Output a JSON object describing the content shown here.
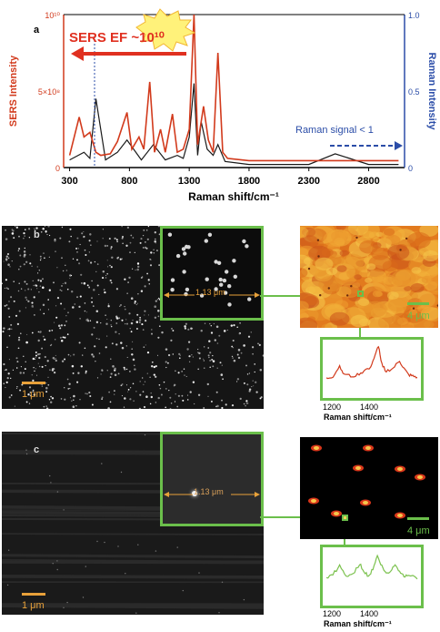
{
  "panel_a": {
    "label": "a",
    "y_left_label": "SERS Intensity",
    "y_right_label": "Raman Intensity",
    "x_label": "Raman shift/cm⁻¹",
    "x_ticks": [
      "300",
      "800",
      "1300",
      "1800",
      "2300",
      "2800"
    ],
    "y_left_ticks": [
      "0",
      "5×10⁸",
      "10¹⁰"
    ],
    "y_right_ticks": [
      "0",
      "0.5",
      "1.0"
    ],
    "annotation_ef": "SERS EF ~10¹⁰",
    "annotation_raman": "Raman signal < 1",
    "colors": {
      "sers": "#d23a1c",
      "raman": "#1a1a1a",
      "right_axis": "#2b4da8",
      "arrow": "#e03020"
    }
  },
  "panel_b": {
    "label": "b",
    "inset_dimension": "1.13 μm",
    "scale_sem": "1 μm",
    "scale_map": "4 μm",
    "spectrum_xlabel": "Raman shift/cm⁻¹",
    "spectrum_ticks": [
      "1200",
      "1400"
    ]
  },
  "panel_c": {
    "label": "c",
    "inset_dimension": "1.13 μm",
    "scale_sem": "1 μm",
    "scale_map": "4 μm",
    "spectrum_xlabel": "Raman shift/cm⁻¹",
    "spectrum_ticks": [
      "1200",
      "1400"
    ]
  },
  "chart_data": [
    {
      "type": "line",
      "panel": "a",
      "xlabel": "Raman shift/cm⁻¹",
      "ylabel": "SERS Intensity",
      "y2label": "Raman Intensity",
      "xlim": [
        250,
        3100
      ],
      "ylim": [
        0,
        10000000000.0
      ],
      "y2lim": [
        0,
        1.0
      ],
      "series": [
        {
          "axis": "left",
          "x": [
            300,
            380,
            420,
            470,
            520,
            560,
            640,
            700,
            780,
            820,
            880,
            920,
            970,
            1010,
            1060,
            1100,
            1160,
            1200,
            1250,
            1300,
            1340,
            1370,
            1420,
            1460,
            1500,
            1540,
            1580,
            1620,
            1800,
            2300,
            2800,
            3050
          ],
          "y": [
            800000000.0,
            3300000000.0,
            2000000000.0,
            2300000000.0,
            1000000000.0,
            800000000.0,
            900000000.0,
            1700000000.0,
            3600000000.0,
            1200000000.0,
            2000000000.0,
            1200000000.0,
            5600000000.0,
            1000000000.0,
            2500000000.0,
            1000000000.0,
            3500000000.0,
            1000000000.0,
            1200000000.0,
            2500000000.0,
            10000000000.0,
            1500000000.0,
            4000000000.0,
            1800000000.0,
            1000000000.0,
            7500000000.0,
            1000000000.0,
            600000000.0,
            450000000.0,
            450000000.0,
            450000000.0,
            450000000.0
          ]
        },
        {
          "axis": "right",
          "x": [
            300,
            420,
            470,
            520,
            600,
            700,
            780,
            900,
            1000,
            1100,
            1200,
            1250,
            1300,
            1340,
            1370,
            1400,
            1450,
            1500,
            1540,
            1600,
            1800,
            2300,
            2520,
            2800,
            3050
          ],
          "y": [
            0.05,
            0.1,
            0.06,
            0.45,
            0.05,
            0.1,
            0.18,
            0.05,
            0.15,
            0.05,
            0.08,
            0.06,
            0.2,
            0.55,
            0.08,
            0.3,
            0.12,
            0.08,
            0.15,
            0.04,
            0.02,
            0.02,
            0.09,
            0.02,
            0.02
          ]
        }
      ]
    },
    {
      "type": "line",
      "panel": "b",
      "xlabel": "Raman shift/cm⁻¹",
      "xlim": [
        1150,
        1560
      ],
      "x": [
        1150,
        1180,
        1210,
        1230,
        1260,
        1290,
        1320,
        1350,
        1370,
        1385,
        1400,
        1420,
        1450,
        1480,
        1500,
        1520,
        1540,
        1560
      ],
      "y": [
        0.3,
        0.35,
        0.55,
        0.4,
        0.35,
        0.38,
        0.45,
        0.55,
        0.75,
        0.95,
        0.6,
        0.45,
        0.5,
        0.65,
        0.5,
        0.38,
        0.35,
        0.33
      ]
    },
    {
      "type": "line",
      "panel": "c",
      "xlabel": "Raman shift/cm⁻¹",
      "xlim": [
        1150,
        1560
      ],
      "x": [
        1150,
        1180,
        1210,
        1240,
        1270,
        1300,
        1320,
        1340,
        1360,
        1380,
        1400,
        1420,
        1440,
        1460,
        1480,
        1500,
        1520,
        1560
      ],
      "y": [
        0.45,
        0.55,
        0.7,
        0.5,
        0.55,
        0.75,
        0.6,
        0.5,
        0.65,
        0.9,
        0.7,
        0.55,
        0.6,
        0.75,
        0.6,
        0.5,
        0.55,
        0.45
      ]
    }
  ]
}
